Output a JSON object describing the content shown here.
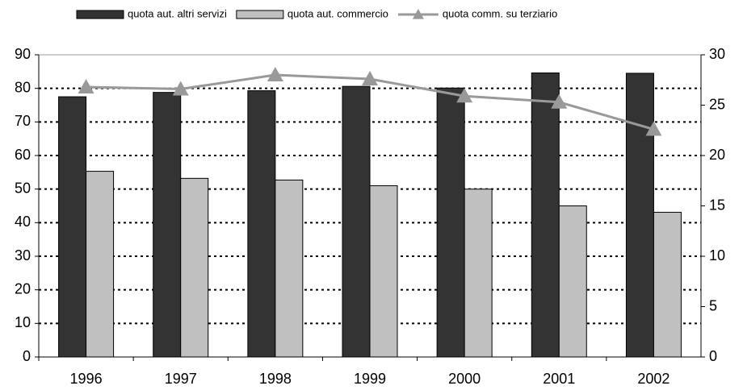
{
  "chart_data": {
    "type": "bar",
    "categories": [
      "1996",
      "1997",
      "1998",
      "1999",
      "2000",
      "2001",
      "2002"
    ],
    "series": [
      {
        "name": "quota aut. altri servizi",
        "type": "bar",
        "color": "#333333",
        "values": [
          77.5,
          78.8,
          79.3,
          80.6,
          80.1,
          84.6,
          84.5
        ]
      },
      {
        "name": "quota aut. commercio",
        "type": "bar",
        "color": "#c0c0c0",
        "values": [
          55.3,
          53.2,
          52.7,
          51.0,
          50.0,
          45.0,
          43.1
        ]
      },
      {
        "name": "quota comm. su terziario",
        "type": "line",
        "axis": "y2",
        "color": "#999999",
        "values": [
          26.8,
          26.6,
          28.0,
          27.6,
          25.9,
          25.3,
          22.6
        ]
      }
    ],
    "ylim": [
      0,
      90
    ],
    "yticks": [
      0,
      10,
      20,
      30,
      40,
      50,
      60,
      70,
      80,
      90
    ],
    "y2lim": [
      0,
      30
    ],
    "y2ticks": [
      0,
      5,
      10,
      15,
      20,
      25,
      30
    ],
    "grid": true,
    "legend": "top"
  }
}
